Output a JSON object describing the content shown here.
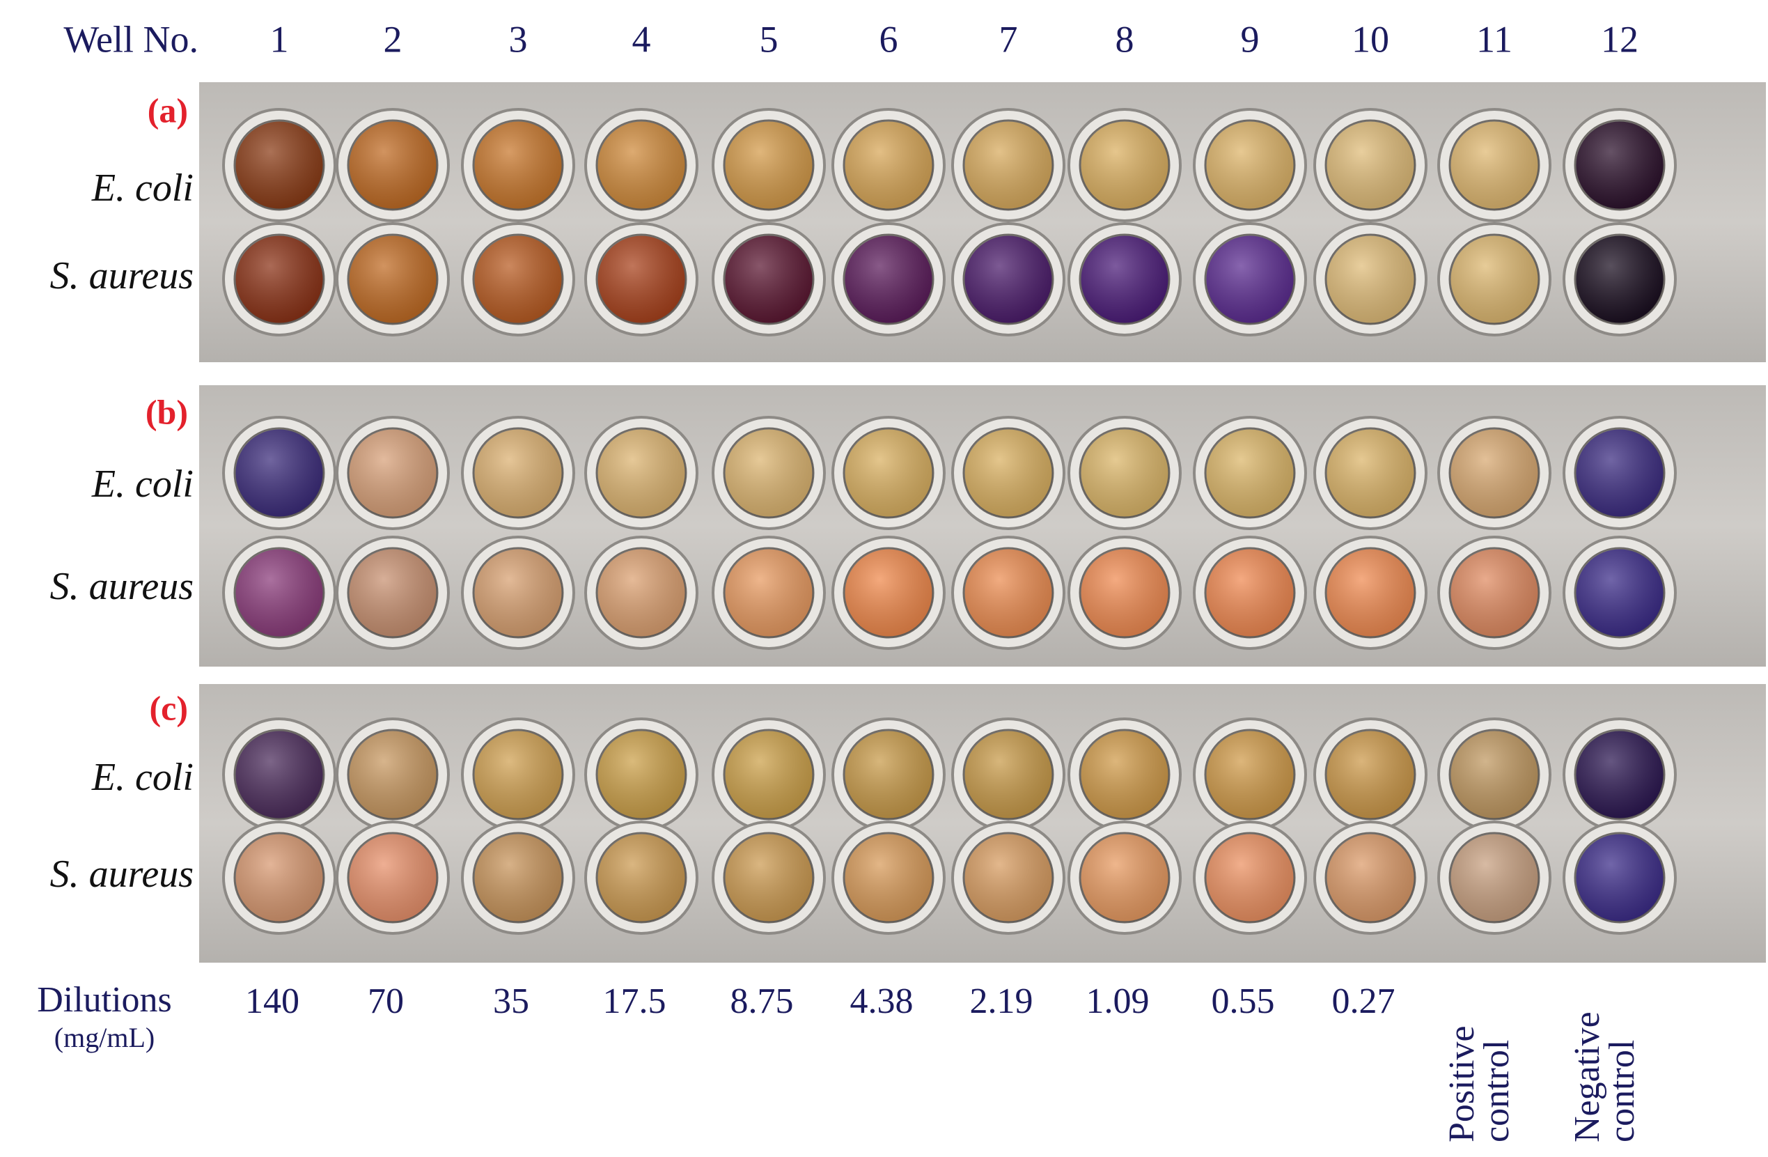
{
  "header": {
    "label": "Well No.",
    "wells": [
      "1",
      "2",
      "3",
      "4",
      "5",
      "6",
      "7",
      "8",
      "9",
      "10",
      "11",
      "12"
    ]
  },
  "panels": [
    {
      "label": "(a)",
      "rows": [
        "E. coli",
        "S. aureus"
      ]
    },
    {
      "label": "(b)",
      "rows": [
        "E. coli",
        "S. aureus"
      ]
    },
    {
      "label": "(c)",
      "rows": [
        "E. coli",
        "S. aureus"
      ]
    }
  ],
  "dilutions": {
    "label": "Dilutions",
    "unit": "(mg/mL)",
    "values": [
      "140",
      "70",
      "35",
      "17.5",
      "8.75",
      "4.38",
      "2.19",
      "1.09",
      "0.55",
      "0.27",
      "Positive control",
      "Negative control"
    ]
  }
}
